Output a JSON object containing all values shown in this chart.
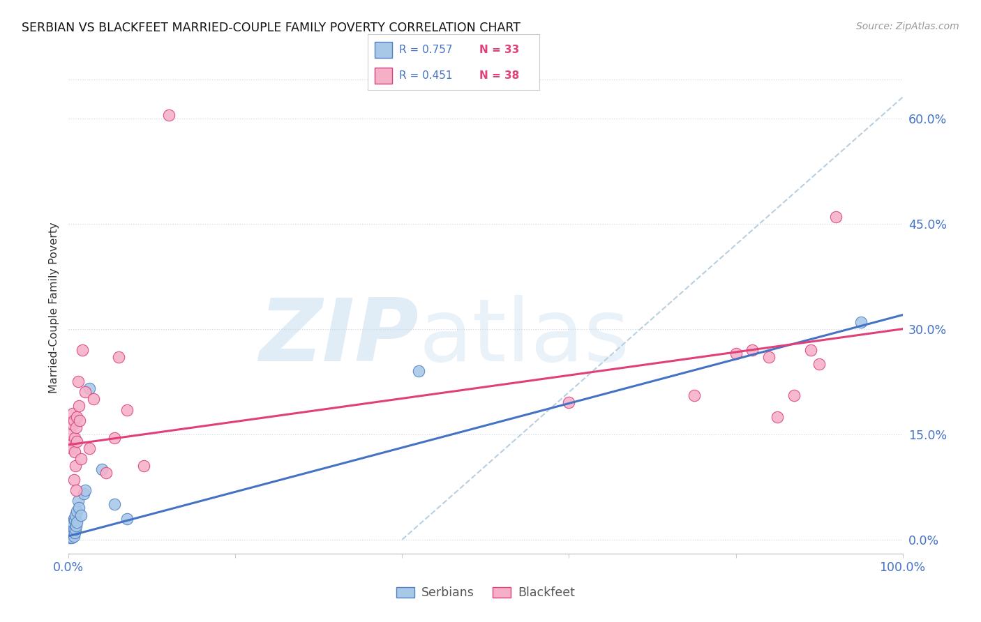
{
  "title": "SERBIAN VS BLACKFEET MARRIED-COUPLE FAMILY POVERTY CORRELATION CHART",
  "source": "Source: ZipAtlas.com",
  "ylabel": "Married-Couple Family Poverty",
  "ytick_vals": [
    0.0,
    15.0,
    30.0,
    45.0,
    60.0
  ],
  "xlim": [
    0.0,
    100.0
  ],
  "ylim": [
    -2.0,
    68.0
  ],
  "serbian_fill": "#a8c8e8",
  "serbian_edge": "#5080c0",
  "blackfeet_fill": "#f5b0c8",
  "blackfeet_edge": "#d84080",
  "trend_serbian": "#4472c4",
  "trend_blackfeet": "#e0407a",
  "diagonal_color": "#b8cfe0",
  "r_color": "#4472c4",
  "n_color": "#e0407a",
  "serbians_label": "Serbians",
  "blackfeet_label": "Blackfeet",
  "legend_r_serbian": "R = 0.757",
  "legend_n_serbian": "N = 33",
  "legend_r_blackfeet": "R = 0.451",
  "legend_n_blackfeet": "N = 38",
  "trend_serbian_x0": 0.0,
  "trend_serbian_y0": 0.5,
  "trend_serbian_x1": 100.0,
  "trend_serbian_y1": 32.0,
  "trend_blackfeet_x0": 0.0,
  "trend_blackfeet_y0": 13.5,
  "trend_blackfeet_x1": 100.0,
  "trend_blackfeet_y1": 30.0,
  "diag_x0": 40.0,
  "diag_y0": 0.0,
  "diag_x1": 100.0,
  "diag_y1": 63.0,
  "serbian_x": [
    0.1,
    0.15,
    0.2,
    0.25,
    0.3,
    0.3,
    0.35,
    0.4,
    0.4,
    0.45,
    0.5,
    0.5,
    0.6,
    0.6,
    0.65,
    0.7,
    0.7,
    0.8,
    0.8,
    0.9,
    1.0,
    1.0,
    1.1,
    1.2,
    1.5,
    1.8,
    2.0,
    2.5,
    4.0,
    5.5,
    7.0,
    42.0,
    95.0
  ],
  "serbian_y": [
    0.3,
    0.5,
    1.0,
    0.8,
    1.5,
    0.5,
    2.0,
    1.2,
    0.3,
    1.8,
    2.5,
    1.0,
    3.0,
    1.5,
    0.5,
    2.8,
    1.0,
    3.5,
    1.5,
    2.0,
    4.0,
    2.5,
    5.5,
    4.5,
    3.5,
    6.5,
    7.0,
    21.5,
    10.0,
    5.0,
    3.0,
    24.0,
    31.0
  ],
  "blackfeet_x": [
    0.2,
    0.3,
    0.4,
    0.5,
    0.5,
    0.6,
    0.65,
    0.7,
    0.75,
    0.8,
    0.85,
    0.9,
    1.0,
    1.0,
    1.1,
    1.2,
    1.3,
    1.5,
    1.6,
    2.0,
    2.5,
    3.0,
    4.5,
    5.5,
    6.0,
    7.0,
    9.0,
    12.0,
    60.0,
    75.0,
    80.0,
    82.0,
    84.0,
    85.0,
    87.0,
    89.0,
    90.0,
    92.0
  ],
  "blackfeet_y": [
    13.5,
    15.0,
    13.0,
    16.5,
    18.0,
    17.0,
    8.5,
    14.5,
    12.5,
    10.5,
    16.0,
    7.0,
    14.0,
    17.5,
    22.5,
    19.0,
    17.0,
    11.5,
    27.0,
    21.0,
    13.0,
    20.0,
    9.5,
    14.5,
    26.0,
    18.5,
    10.5,
    60.5,
    19.5,
    20.5,
    26.5,
    27.0,
    26.0,
    17.5,
    20.5,
    27.0,
    25.0,
    46.0
  ]
}
